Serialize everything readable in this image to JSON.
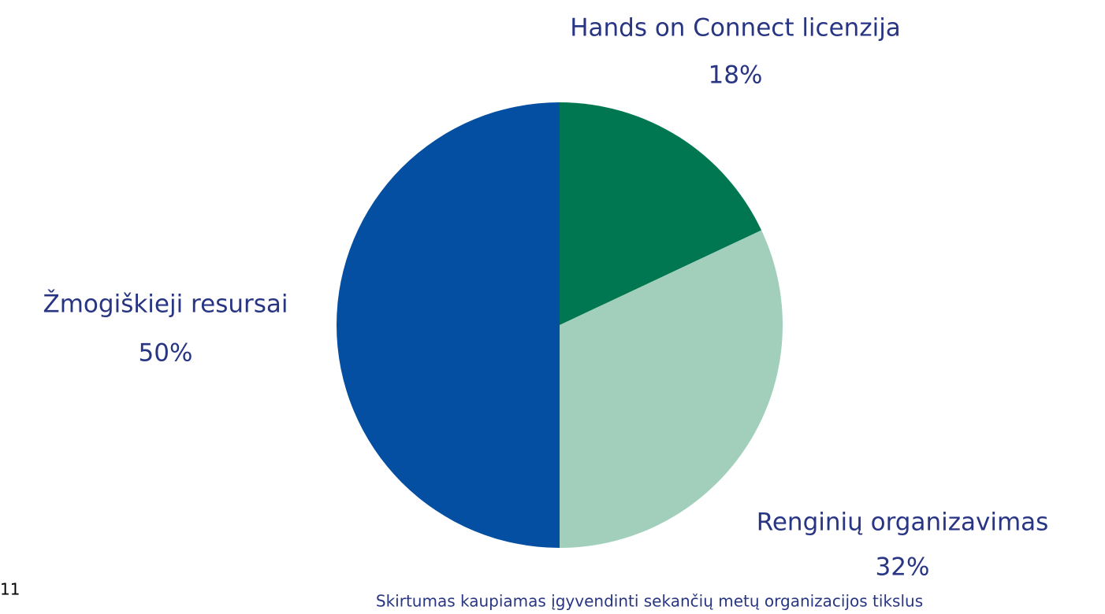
{
  "chart_data": {
    "type": "pie",
    "categories": [
      "Hands on Connect licenzija",
      "Renginių organizavimas",
      "Žmogiškieji resursai"
    ],
    "values": [
      18,
      32,
      50
    ],
    "value_labels": [
      "18%",
      "32%",
      "50%"
    ],
    "colors": [
      "#007750",
      "#a2cfbc",
      "#044fa2"
    ],
    "note": "Skirtumas kaupiamas įgyvendinti sekančių metų organizacijos tikslus"
  },
  "page_number": "11"
}
